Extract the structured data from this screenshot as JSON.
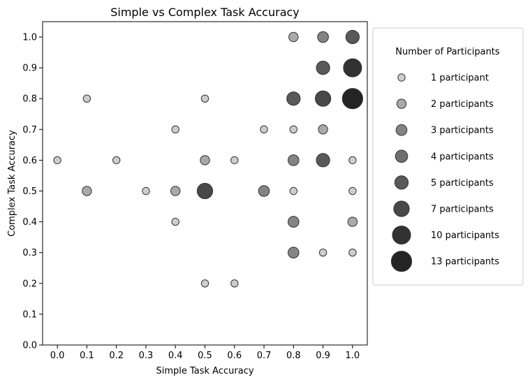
{
  "chart_data": {
    "type": "scatter",
    "title": "Simple vs Complex Task Accuracy",
    "xlabel": "Simple Task Accuracy",
    "ylabel": "Complex Task Accuracy",
    "xlim": [
      -0.05,
      1.05
    ],
    "ylim": [
      0.0,
      1.05
    ],
    "xticks": [
      "0.0",
      "0.1",
      "0.2",
      "0.3",
      "0.4",
      "0.5",
      "0.6",
      "0.7",
      "0.8",
      "0.9",
      "1.0"
    ],
    "yticks": [
      "0.0",
      "0.1",
      "0.2",
      "0.3",
      "0.4",
      "0.5",
      "0.6",
      "0.7",
      "0.8",
      "0.9",
      "1.0"
    ],
    "grid": false,
    "size_encoding": "number of participants",
    "points": [
      {
        "x": 0.0,
        "y": 0.6,
        "n": 1
      },
      {
        "x": 0.1,
        "y": 0.8,
        "n": 1
      },
      {
        "x": 0.1,
        "y": 0.5,
        "n": 2
      },
      {
        "x": 0.2,
        "y": 0.6,
        "n": 1
      },
      {
        "x": 0.3,
        "y": 0.5,
        "n": 1
      },
      {
        "x": 0.4,
        "y": 0.7,
        "n": 1
      },
      {
        "x": 0.4,
        "y": 0.5,
        "n": 2
      },
      {
        "x": 0.4,
        "y": 0.4,
        "n": 1
      },
      {
        "x": 0.5,
        "y": 0.8,
        "n": 1
      },
      {
        "x": 0.5,
        "y": 0.6,
        "n": 2
      },
      {
        "x": 0.5,
        "y": 0.5,
        "n": 7
      },
      {
        "x": 0.5,
        "y": 0.2,
        "n": 1
      },
      {
        "x": 0.6,
        "y": 0.6,
        "n": 1
      },
      {
        "x": 0.6,
        "y": 0.2,
        "n": 1
      },
      {
        "x": 0.7,
        "y": 0.7,
        "n": 1
      },
      {
        "x": 0.7,
        "y": 0.5,
        "n": 3
      },
      {
        "x": 0.8,
        "y": 1.0,
        "n": 2
      },
      {
        "x": 0.8,
        "y": 0.8,
        "n": 5
      },
      {
        "x": 0.8,
        "y": 0.7,
        "n": 1
      },
      {
        "x": 0.8,
        "y": 0.6,
        "n": 3
      },
      {
        "x": 0.8,
        "y": 0.5,
        "n": 1
      },
      {
        "x": 0.8,
        "y": 0.4,
        "n": 3
      },
      {
        "x": 0.8,
        "y": 0.3,
        "n": 3
      },
      {
        "x": 0.9,
        "y": 1.0,
        "n": 3
      },
      {
        "x": 0.9,
        "y": 0.9,
        "n": 5
      },
      {
        "x": 0.9,
        "y": 0.8,
        "n": 7
      },
      {
        "x": 0.9,
        "y": 0.7,
        "n": 2
      },
      {
        "x": 0.9,
        "y": 0.6,
        "n": 5
      },
      {
        "x": 0.9,
        "y": 0.3,
        "n": 1
      },
      {
        "x": 1.0,
        "y": 1.0,
        "n": 5
      },
      {
        "x": 1.0,
        "y": 0.9,
        "n": 10
      },
      {
        "x": 1.0,
        "y": 0.8,
        "n": 13
      },
      {
        "x": 1.0,
        "y": 0.6,
        "n": 1
      },
      {
        "x": 1.0,
        "y": 0.5,
        "n": 1
      },
      {
        "x": 1.0,
        "y": 0.4,
        "n": 2
      },
      {
        "x": 1.0,
        "y": 0.3,
        "n": 1
      }
    ],
    "legend": {
      "title": "Number of Participants",
      "placement": "outside-right",
      "entries": [
        {
          "n": 1,
          "label": "1 participant"
        },
        {
          "n": 2,
          "label": "2 participants"
        },
        {
          "n": 3,
          "label": "3 participants"
        },
        {
          "n": 4,
          "label": "4 participants"
        },
        {
          "n": 5,
          "label": "5 participants"
        },
        {
          "n": 7,
          "label": "7 participants"
        },
        {
          "n": 10,
          "label": "10 participants"
        },
        {
          "n": 13,
          "label": "13 participants"
        }
      ]
    },
    "colors": {
      "1": "#c8c8c8",
      "2": "#a0a0a0",
      "3": "#777777",
      "4": "#5e5e5e",
      "5": "#474747",
      "7": "#343434",
      "10": "#1c1c1c",
      "13": "#0c0c0c"
    },
    "edge_color": "#333333"
  }
}
